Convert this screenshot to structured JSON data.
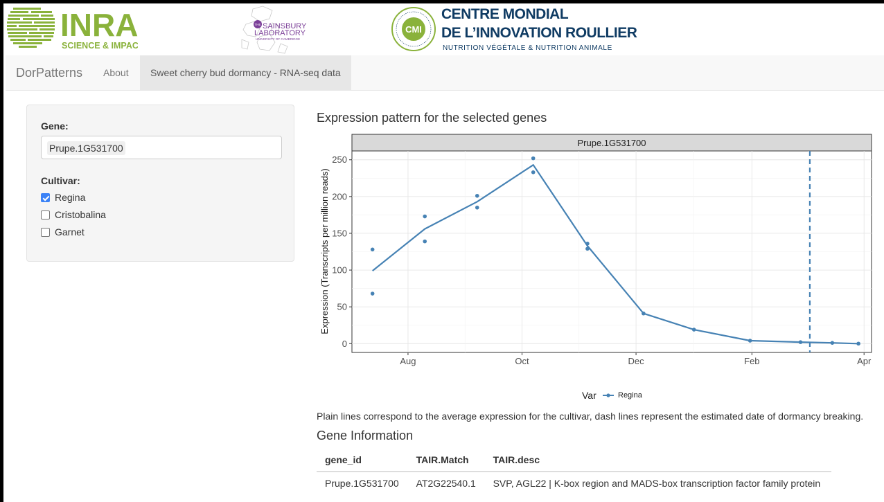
{
  "logos": {
    "inra_name": "INRA",
    "inra_tagline": "SCIENCE & IMPACT",
    "sainsbury_line1": "THE",
    "sainsbury_line2": "SAINSBURY",
    "sainsbury_line3": "LABORATORY",
    "sainsbury_line4": "UNIVERSITY OF CAMBRIDGE",
    "cmi_badge": "CMI",
    "cmi_line1": "CENTRE MONDIAL",
    "cmi_line2": "DE L’INNOVATION ROULLIER",
    "cmi_line3": "NUTRITION VÉGÉTALE & NUTRITION ANIMALE"
  },
  "navbar": {
    "brand": "DorPatterns",
    "tabs": [
      {
        "label": "About",
        "active": false
      },
      {
        "label": "Sweet cherry bud dormancy - RNA-seq data",
        "active": true
      }
    ]
  },
  "sidebar": {
    "gene_label": "Gene:",
    "gene_value": "Prupe.1G531700",
    "cultivar_label": "Cultivar:",
    "cultivars": [
      {
        "label": "Regina",
        "checked": true
      },
      {
        "label": "Cristobalina",
        "checked": false
      },
      {
        "label": "Garnet",
        "checked": false
      }
    ]
  },
  "main": {
    "title": "Expression pattern for the selected genes",
    "caption": "Plain lines correspond to the average expression for the cultivar, dash lines represent the estimated date of dormancy breaking.",
    "gene_info_title": "Gene Information",
    "table": {
      "headers": [
        "gene_id",
        "TAIR.Match",
        "TAIR.desc"
      ],
      "rows": [
        [
          "Prupe.1G531700",
          "AT2G22540.1",
          "SVP, AGL22 | K-box region and MADS-box transcription factor family protein"
        ]
      ]
    }
  },
  "chart_data": {
    "type": "line",
    "facet_title": "Prupe.1G531700",
    "ylabel": "Expression (Transcripts per million reads)",
    "xlabel": "",
    "x_ticks": [
      "Aug",
      "Oct",
      "Dec",
      "Feb",
      "Apr"
    ],
    "y_ticks": [
      0,
      50,
      100,
      150,
      200,
      250
    ],
    "ylim": [
      -12,
      262
    ],
    "series_color": "#4682b4",
    "legend": {
      "title": "Var",
      "entries": [
        "Regina"
      ],
      "position": "bottom"
    },
    "mean_line": {
      "x": [
        "Jul 13",
        "Aug 10",
        "Sep 07",
        "Oct 07",
        "Nov 05",
        "Dec 05",
        "Jan 01",
        "Jan 31",
        "Feb 27",
        "Mar 15",
        "Mar 29"
      ],
      "values": [
        99,
        156,
        193,
        243,
        133,
        41,
        19,
        4,
        2,
        1,
        0
      ]
    },
    "points": [
      {
        "x": "Jul 13",
        "values": [
          128,
          68
        ]
      },
      {
        "x": "Aug 10",
        "values": [
          173,
          139
        ]
      },
      {
        "x": "Sep 07",
        "values": [
          201,
          185
        ]
      },
      {
        "x": "Oct 07",
        "values": [
          252,
          233
        ]
      },
      {
        "x": "Nov 05",
        "values": [
          136,
          129
        ]
      },
      {
        "x": "Dec 05",
        "values": [
          41
        ]
      },
      {
        "x": "Jan 01",
        "values": [
          19
        ]
      },
      {
        "x": "Jan 31",
        "values": [
          4
        ]
      },
      {
        "x": "Feb 27",
        "values": [
          2
        ]
      },
      {
        "x": "Mar 15",
        "values": [
          1
        ]
      },
      {
        "x": "Mar 29",
        "values": [
          0
        ]
      }
    ],
    "dormancy_break": "Mar 03",
    "grid": true
  }
}
